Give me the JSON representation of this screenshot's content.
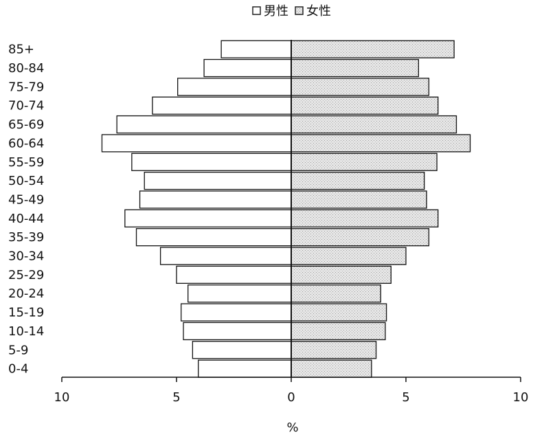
{
  "chart_data": {
    "type": "bar",
    "orientation": "horizontal-population-pyramid",
    "categories": [
      "0-4",
      "5-9",
      "10-14",
      "15-19",
      "20-24",
      "25-29",
      "30-34",
      "35-39",
      "40-44",
      "45-49",
      "50-54",
      "55-59",
      "60-64",
      "65-69",
      "70-74",
      "75-79",
      "80-84",
      "85+"
    ],
    "series": [
      {
        "name": "男性",
        "values": [
          4.05,
          4.3,
          4.7,
          4.8,
          4.5,
          5.0,
          5.7,
          6.75,
          7.25,
          6.6,
          6.4,
          6.95,
          8.25,
          7.6,
          6.05,
          4.95,
          3.8,
          3.05
        ],
        "color": "#ffffff"
      },
      {
        "name": "女性",
        "values": [
          3.5,
          3.7,
          4.1,
          4.15,
          3.9,
          4.35,
          5.0,
          6.0,
          6.4,
          5.9,
          5.8,
          6.35,
          7.8,
          7.2,
          6.4,
          6.0,
          5.55,
          7.1
        ],
        "color": "#dcdcdc"
      }
    ],
    "xlim": [
      -10,
      10
    ],
    "xticks": [
      -10,
      -5,
      0,
      5,
      10
    ],
    "xtick_labels": [
      "10",
      "5",
      "0",
      "5",
      "10"
    ],
    "xlabel": "%",
    "legend_position": "top-center",
    "grid": false
  },
  "legend": {
    "male_label": "男性",
    "female_label": "女性"
  }
}
